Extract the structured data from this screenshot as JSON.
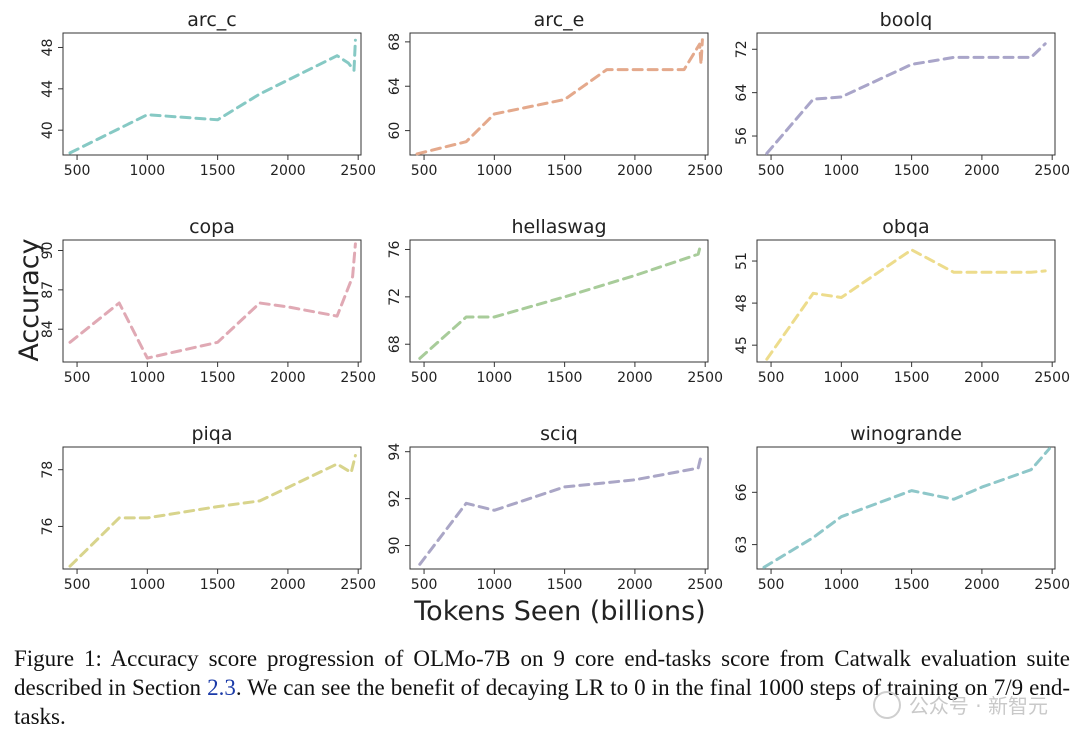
{
  "figure": {
    "ylabel": "Accuracy",
    "xlabel": "Tokens Seen (billions)"
  },
  "caption": {
    "prefix": "Figure 1:  Accuracy score progression of OLMo-7B on 9 core end-tasks score from Catwalk evaluation suite described in Section ",
    "ref": "2.3",
    "suffix": ".  We can see the benefit of decaying LR to 0 in the final 1000 steps of training on 7/9 end-tasks."
  },
  "watermark": "公众号 · 新智元",
  "chart_data": [
    {
      "type": "line",
      "title": "arc_c",
      "color": "#86c9c4",
      "xticks": [
        500,
        1000,
        1500,
        2000,
        2500
      ],
      "yticks": [
        40,
        44,
        48
      ],
      "xlim": [
        400,
        2520
      ],
      "ylim": [
        37.6,
        49.4
      ],
      "x": [
        450,
        1000,
        1500,
        1800,
        2350,
        2430,
        2470,
        2480
      ],
      "y": [
        37.8,
        41.5,
        41.0,
        43.5,
        47.2,
        46.5,
        45.8,
        48.7
      ]
    },
    {
      "type": "line",
      "title": "arc_e",
      "color": "#e4a98c",
      "xticks": [
        500,
        1000,
        1500,
        2000,
        2500
      ],
      "yticks": [
        60,
        64,
        68
      ],
      "xlim": [
        400,
        2520
      ],
      "ylim": [
        57.8,
        68.8
      ],
      "x": [
        450,
        800,
        1000,
        1500,
        1800,
        2000,
        2350,
        2460,
        2470,
        2480
      ],
      "y": [
        57.9,
        59.0,
        61.5,
        62.8,
        65.5,
        65.5,
        65.5,
        67.8,
        66.0,
        68.2
      ]
    },
    {
      "type": "line",
      "title": "boolq",
      "color": "#a9a5c9",
      "xticks": [
        500,
        1000,
        1500,
        2000,
        2500
      ],
      "yticks": [
        56,
        64,
        72
      ],
      "xlim": [
        400,
        2520
      ],
      "ylim": [
        52.5,
        75.0
      ],
      "x": [
        470,
        800,
        1000,
        1500,
        1800,
        2000,
        2350,
        2450
      ],
      "y": [
        52.8,
        62.8,
        63.2,
        69.2,
        70.5,
        70.5,
        70.5,
        73.0
      ]
    },
    {
      "type": "line",
      "title": "copa",
      "color": "#e0a9b4",
      "xticks": [
        500,
        1000,
        1500,
        2000,
        2500
      ],
      "yticks": [
        84,
        87,
        90
      ],
      "xlim": [
        400,
        2520
      ],
      "ylim": [
        81.5,
        90.8
      ],
      "x": [
        450,
        800,
        1000,
        1500,
        1800,
        2000,
        2350,
        2460,
        2480
      ],
      "y": [
        83.0,
        86.0,
        81.8,
        83.0,
        86.0,
        85.7,
        85.0,
        88.0,
        90.5
      ]
    },
    {
      "type": "line",
      "title": "hellaswag",
      "color": "#a8cc9a",
      "xticks": [
        500,
        1000,
        1500,
        2000,
        2500
      ],
      "yticks": [
        68,
        72,
        76
      ],
      "xlim": [
        400,
        2520
      ],
      "ylim": [
        66.5,
        76.8
      ],
      "x": [
        470,
        800,
        1000,
        1500,
        2000,
        2450,
        2470
      ],
      "y": [
        66.8,
        70.3,
        70.3,
        72.0,
        73.8,
        75.6,
        76.5
      ]
    },
    {
      "type": "line",
      "title": "obqa",
      "color": "#eddc8c",
      "xticks": [
        500,
        1000,
        1500,
        2000,
        2500
      ],
      "yticks": [
        45,
        48,
        51
      ],
      "xlim": [
        400,
        2520
      ],
      "ylim": [
        43.8,
        52.5
      ],
      "x": [
        470,
        800,
        1000,
        1500,
        1800,
        2000,
        2350,
        2450
      ],
      "y": [
        44.0,
        48.7,
        48.4,
        51.8,
        50.2,
        50.2,
        50.2,
        50.3
      ]
    },
    {
      "type": "line",
      "title": "piqa",
      "color": "#d8d48c",
      "xticks": [
        500,
        1000,
        1500,
        2000,
        2500
      ],
      "yticks": [
        76,
        78
      ],
      "xlim": [
        400,
        2520
      ],
      "ylim": [
        74.5,
        78.8
      ],
      "x": [
        450,
        800,
        1000,
        1500,
        1800,
        2350,
        2450,
        2480
      ],
      "y": [
        74.6,
        76.3,
        76.3,
        76.7,
        76.9,
        78.2,
        77.9,
        78.5
      ]
    },
    {
      "type": "line",
      "title": "sciq",
      "color": "#aaa6c6",
      "xticks": [
        500,
        1000,
        1500,
        2000,
        2500
      ],
      "yticks": [
        90,
        92,
        94
      ],
      "xlim": [
        400,
        2520
      ],
      "ylim": [
        89.0,
        94.2
      ],
      "x": [
        470,
        800,
        1000,
        1500,
        2000,
        2450,
        2470
      ],
      "y": [
        89.2,
        91.8,
        91.5,
        92.5,
        92.8,
        93.3,
        93.8
      ]
    },
    {
      "type": "line",
      "title": "winogrande",
      "color": "#8ec7c9",
      "xticks": [
        500,
        1000,
        1500,
        2000,
        2500
      ],
      "yticks": [
        63,
        66
      ],
      "xlim": [
        400,
        2520
      ],
      "ylim": [
        61.6,
        68.6
      ],
      "x": [
        450,
        800,
        1000,
        1500,
        1800,
        2000,
        2350,
        2480
      ],
      "y": [
        61.7,
        63.4,
        64.6,
        66.1,
        65.6,
        66.3,
        67.3,
        68.5
      ]
    }
  ]
}
